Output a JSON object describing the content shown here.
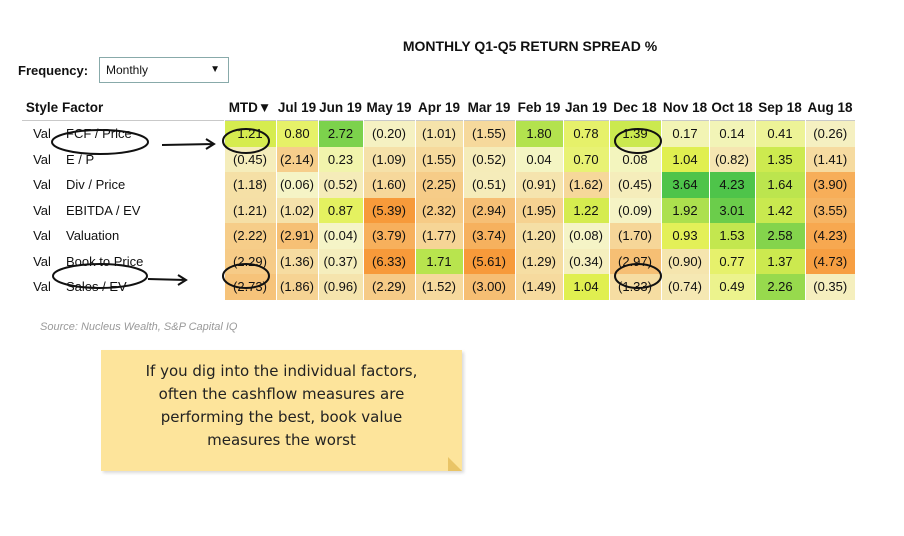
{
  "title": "MONTHLY Q1-Q5 RETURN SPREAD %",
  "frequency": {
    "label": "Frequency:",
    "value": "Monthly",
    "caret": "▼"
  },
  "table": {
    "headers": {
      "style": "Style",
      "factor": "Factor",
      "periods": [
        "MTD▼",
        "Jul 19",
        "Jun 19",
        "May 19",
        "Apr 19",
        "Mar 19",
        "Feb 19",
        "Jan 19",
        "Dec 18",
        "Nov 18",
        "Oct 18",
        "Sep 18",
        "Aug 18"
      ]
    },
    "rows": [
      {
        "style": "Val",
        "factor": "FCF / Price",
        "values": [
          "1.21",
          "0.80",
          "2.72",
          "(0.20)",
          "(1.01)",
          "(1.55)",
          "1.80",
          "0.78",
          "1.39",
          "0.17",
          "0.14",
          "0.41",
          "(0.26)"
        ]
      },
      {
        "style": "Val",
        "factor": "E / P",
        "values": [
          "(0.45)",
          "(2.14)",
          "0.23",
          "(1.09)",
          "(1.55)",
          "(0.52)",
          "0.04",
          "0.70",
          "0.08",
          "1.04",
          "(0.82)",
          "1.35",
          "(1.41)"
        ]
      },
      {
        "style": "Val",
        "factor": "Div / Price",
        "values": [
          "(1.18)",
          "(0.06)",
          "(0.52)",
          "(1.60)",
          "(2.25)",
          "(0.51)",
          "(0.91)",
          "(1.62)",
          "(0.45)",
          "3.64",
          "4.23",
          "1.64",
          "(3.90)"
        ]
      },
      {
        "style": "Val",
        "factor": "EBITDA / EV",
        "values": [
          "(1.21)",
          "(1.02)",
          "0.87",
          "(5.39)",
          "(2.32)",
          "(2.94)",
          "(1.95)",
          "1.22",
          "(0.09)",
          "1.92",
          "3.01",
          "1.42",
          "(3.55)"
        ]
      },
      {
        "style": "Val",
        "factor": "Valuation",
        "values": [
          "(2.22)",
          "(2.91)",
          "(0.04)",
          "(3.79)",
          "(1.77)",
          "(3.74)",
          "(1.20)",
          "(0.08)",
          "(1.70)",
          "0.93",
          "1.53",
          "2.58",
          "(4.23)"
        ]
      },
      {
        "style": "Val",
        "factor": "Book to Price",
        "values": [
          "(2.29)",
          "(1.36)",
          "(0.37)",
          "(6.33)",
          "1.71",
          "(5.61)",
          "(1.29)",
          "(0.34)",
          "(2.97)",
          "(0.90)",
          "0.77",
          "1.37",
          "(4.73)"
        ]
      },
      {
        "style": "Val",
        "factor": "Sales / EV",
        "values": [
          "(2.73)",
          "(1.86)",
          "(0.96)",
          "(2.29)",
          "(1.52)",
          "(3.00)",
          "(1.49)",
          "1.04",
          "(1.33)",
          "(0.74)",
          "0.49",
          "2.26",
          "(0.35)"
        ]
      }
    ]
  },
  "source": "Source: Nucleus Wealth, S&P Capital IQ",
  "note": {
    "lines": [
      "If you dig into the individual factors,",
      "often the cashflow measures are",
      "performing the best, book value",
      "measures the worst"
    ]
  },
  "colors": {
    "note_background": "#fde49b",
    "annotation_ink": "#111111",
    "scale_low": "#f79a3a",
    "scale_mid": "#f5f5c8",
    "scale_high": "#4ec44a"
  }
}
